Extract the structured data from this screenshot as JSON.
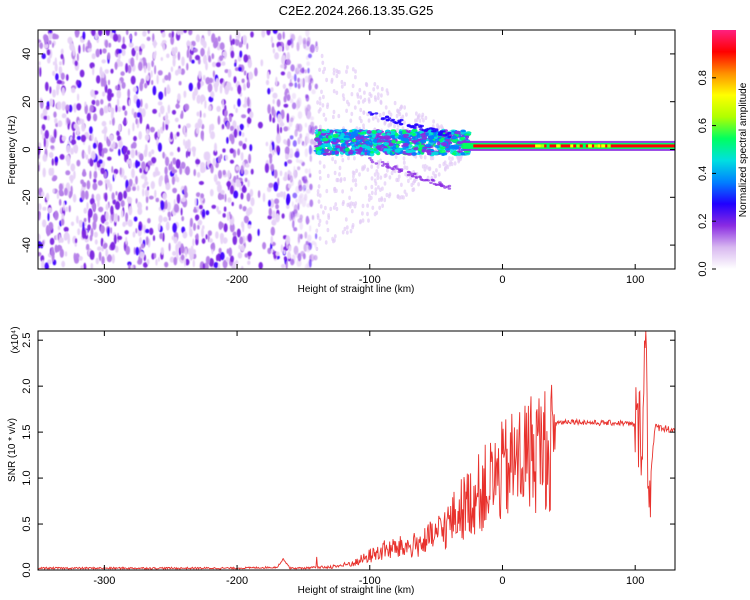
{
  "title": "C2E2.2024.266.13.35.G25",
  "chart_data": [
    {
      "type": "heatmap",
      "xlabel": "Height of straight line (km)",
      "ylabel": "Frequency (Hz)",
      "xlim": [
        -350,
        130
      ],
      "ylim": [
        -50,
        50
      ],
      "x_ticks": [
        "-300",
        "-200",
        "-100",
        "0",
        "100"
      ],
      "x_tick_values": [
        -300,
        -200,
        -100,
        0,
        100
      ],
      "y_ticks": [
        "-40",
        "-20",
        "0",
        "20",
        "40"
      ],
      "y_tick_values": [
        -40,
        -20,
        0,
        20,
        40
      ],
      "noise_region_x": [
        -350,
        -140
      ],
      "transition_region_x": [
        -140,
        -30
      ],
      "tone_region_x": [
        -30,
        130
      ],
      "tone_frequency": 1.5,
      "colorbar": {
        "label": "Normalized spectral amplitude",
        "range": [
          0.0,
          1.0
        ],
        "ticks": [
          "0.0",
          "0.2",
          "0.4",
          "0.6",
          "0.8"
        ],
        "tick_values": [
          0.0,
          0.2,
          0.4,
          0.6,
          0.8
        ],
        "colors": [
          "#ffffff",
          "#d8b8f0",
          "#8a2be2",
          "#2000ff",
          "#0080ff",
          "#00e0e0",
          "#00ff60",
          "#b0ff00",
          "#ffff00",
          "#ff9000",
          "#ff0000",
          "#ff2080"
        ]
      }
    },
    {
      "type": "line",
      "xlabel": "Height of straight line (km)",
      "ylabel": "SNR (10 * v/v)",
      "yscale_label": "(x10⁴)",
      "xlim": [
        -350,
        130
      ],
      "ylim": [
        0,
        2.6
      ],
      "x_ticks": [
        "-300",
        "-200",
        "-100",
        "0",
        "100"
      ],
      "x_tick_values": [
        -300,
        -200,
        -100,
        0,
        100
      ],
      "y_ticks": [
        "0.0",
        "0.5",
        "1.0",
        "1.5",
        "2.0",
        "2.5"
      ],
      "y_tick_values": [
        0.0,
        0.5,
        1.0,
        1.5,
        2.0,
        2.5
      ],
      "color": "#e8312c",
      "series": [
        {
          "x": [
            -350,
            -300,
            -250,
            -200,
            -170,
            -165,
            -160,
            -150,
            -140,
            -130,
            -120,
            -110,
            -100,
            -90,
            -80,
            -70,
            -60,
            -50,
            -40,
            -30,
            -20,
            -10,
            0,
            10,
            20,
            30,
            40,
            50,
            60,
            70,
            80,
            90,
            100,
            105,
            108,
            110,
            115,
            120,
            130
          ],
          "values": [
            0.02,
            0.02,
            0.02,
            0.02,
            0.03,
            0.12,
            0.02,
            0.02,
            0.03,
            0.04,
            0.06,
            0.1,
            0.18,
            0.25,
            0.28,
            0.3,
            0.35,
            0.45,
            0.6,
            0.8,
            0.95,
            1.1,
            1.25,
            1.38,
            1.5,
            1.56,
            1.6,
            1.62,
            1.61,
            1.6,
            1.6,
            1.6,
            1.58,
            1.5,
            2.6,
            0.8,
            1.55,
            1.55,
            1.52
          ]
        }
      ]
    }
  ]
}
